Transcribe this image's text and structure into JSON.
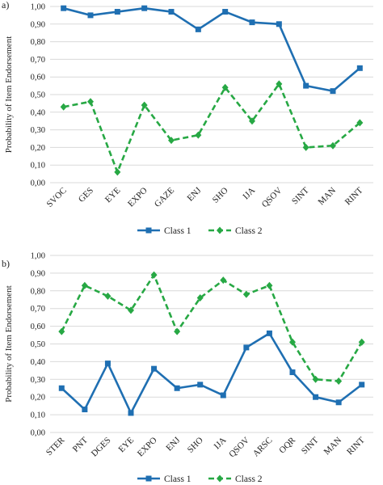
{
  "chart_data": [
    {
      "type": "line",
      "panel_label": "a)",
      "ylabel": "Probability of Item Endorsement",
      "ylim": [
        0,
        1
      ],
      "yticks": [
        "0,00",
        "0,10",
        "0,20",
        "0,30",
        "0,40",
        "0,50",
        "0,60",
        "0,70",
        "0,80",
        "0,90",
        "1,00"
      ],
      "grid": true,
      "legend_position": "bottom",
      "categories": [
        "SVOC",
        "GES",
        "EYE",
        "EXPO",
        "GAZE",
        "ENJ",
        "SHO",
        "IJA",
        "QSOV",
        "SINT",
        "MAN",
        "RINT"
      ],
      "series": [
        {
          "name": "Class 1",
          "color": "#1f6fb2",
          "style": "solid",
          "marker": "square",
          "values": [
            0.99,
            0.95,
            0.97,
            0.99,
            0.97,
            0.87,
            0.97,
            0.91,
            0.9,
            0.55,
            0.52,
            0.65
          ]
        },
        {
          "name": "Class 2",
          "color": "#27a844",
          "style": "dashed",
          "marker": "diamond",
          "values": [
            0.43,
            0.46,
            0.06,
            0.44,
            0.24,
            0.27,
            0.54,
            0.35,
            0.56,
            0.2,
            0.21,
            0.34
          ]
        }
      ]
    },
    {
      "type": "line",
      "panel_label": "b)",
      "ylabel": "Probability of Item Endorsement",
      "ylim": [
        0,
        1
      ],
      "yticks": [
        "0,00",
        "0,10",
        "0,20",
        "0,30",
        "0,40",
        "0,50",
        "0,60",
        "0,70",
        "0,80",
        "0,90",
        "1,00"
      ],
      "grid": true,
      "legend_position": "bottom",
      "categories": [
        "STER",
        "PNT",
        "DGES",
        "EYE",
        "EXPO",
        "ENJ",
        "SHO",
        "IJA",
        "QSOV",
        "ARSC",
        "OQR",
        "SINT",
        "MAN",
        "RINT"
      ],
      "series": [
        {
          "name": "Class 1",
          "color": "#1f6fb2",
          "style": "solid",
          "marker": "square",
          "values": [
            0.25,
            0.13,
            0.39,
            0.11,
            0.36,
            0.25,
            0.27,
            0.21,
            0.48,
            0.56,
            0.34,
            0.2,
            0.17,
            0.27
          ]
        },
        {
          "name": "Class 2",
          "color": "#27a844",
          "style": "dashed",
          "marker": "diamond",
          "values": [
            0.57,
            0.83,
            0.77,
            0.69,
            0.89,
            0.57,
            0.76,
            0.86,
            0.78,
            0.83,
            0.51,
            0.3,
            0.29,
            0.51
          ]
        }
      ]
    }
  ]
}
